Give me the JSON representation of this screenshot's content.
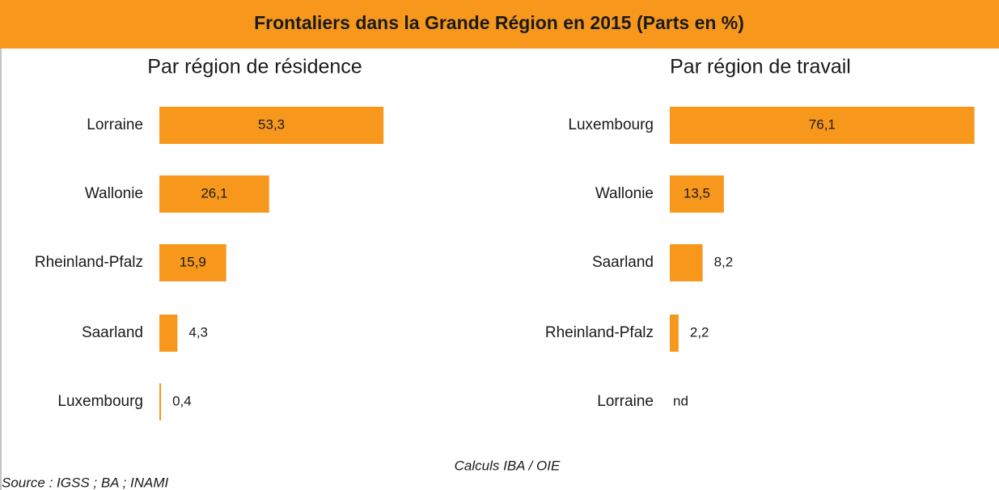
{
  "title": "Frontaliers dans la Grande Région en 2015 (Parts en %)",
  "chart_data": [
    {
      "type": "bar",
      "subtitle": "Par région de résidence",
      "categories": [
        "Lorraine",
        "Wallonie",
        "Rheinland-Pfalz",
        "Saarland",
        "Luxembourg"
      ],
      "values": [
        53.3,
        26.1,
        15.9,
        4.3,
        0.4
      ],
      "value_labels": [
        "53,3",
        "26,1",
        "15,9",
        "4,3",
        "0,4"
      ],
      "color": "#f7981d"
    },
    {
      "type": "bar",
      "subtitle": "Par région de travail",
      "categories": [
        "Luxembourg",
        "Wallonie",
        "Saarland",
        "Rheinland-Pfalz",
        "Lorraine"
      ],
      "values": [
        76.1,
        13.5,
        8.2,
        2.2,
        null
      ],
      "value_labels": [
        "76,1",
        "13,5",
        "8,2",
        "2,2",
        "nd"
      ],
      "color": "#f7981d"
    }
  ],
  "note": "Calculs IBA / OIE",
  "source": "Source : IGSS ; BA ; INAMI"
}
